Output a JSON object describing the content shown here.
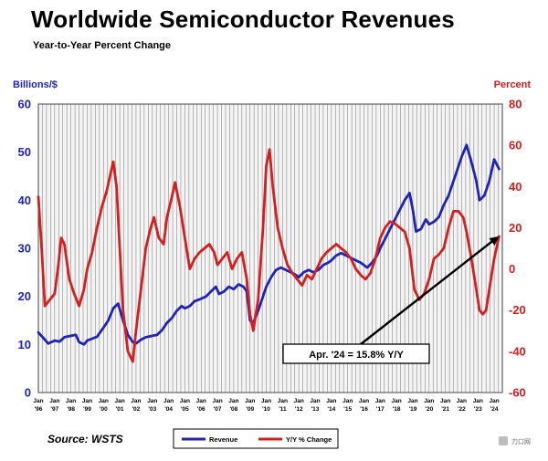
{
  "chart_data": {
    "type": "line",
    "title": "Worldwide Semiconductor Revenues",
    "subtitle": "Year-to-Year Percent Change",
    "ylabel_left": "Billions/$",
    "ylabel_right": "Percent",
    "ylim_left": [
      0,
      60
    ],
    "ylim_right": [
      -60,
      80
    ],
    "yticks_left": [
      "0",
      "10",
      "20",
      "30",
      "40",
      "50",
      "60"
    ],
    "yticks_right": [
      "-60",
      "-40",
      "-20",
      "0",
      "20",
      "40",
      "60",
      "80"
    ],
    "xlim": [
      1996.0,
      2024.5
    ],
    "grid": "vertical",
    "x_ticks": [
      {
        "year": 1996,
        "top": "Jan",
        "bottom": "'96"
      },
      {
        "year": 1997,
        "top": "Jan",
        "bottom": "'97"
      },
      {
        "year": 1998,
        "top": "Jan",
        "bottom": "'98"
      },
      {
        "year": 1999,
        "top": "Jan",
        "bottom": "'99"
      },
      {
        "year": 2000,
        "top": "Jan",
        "bottom": "'00"
      },
      {
        "year": 2001,
        "top": "Jan",
        "bottom": "'01"
      },
      {
        "year": 2002,
        "top": "Jan",
        "bottom": "'02"
      },
      {
        "year": 2003,
        "top": "Jan",
        "bottom": "'03"
      },
      {
        "year": 2004,
        "top": "Jan",
        "bottom": "'04"
      },
      {
        "year": 2005,
        "top": "Jan",
        "bottom": "'05"
      },
      {
        "year": 2006,
        "top": "Jan",
        "bottom": "'06"
      },
      {
        "year": 2007,
        "top": "Jan",
        "bottom": "'07"
      },
      {
        "year": 2008,
        "top": "Jan",
        "bottom": "'08"
      },
      {
        "year": 2009,
        "top": "Jan",
        "bottom": "'09"
      },
      {
        "year": 2010,
        "top": "Jan",
        "bottom": "'10"
      },
      {
        "year": 2011,
        "top": "Jan",
        "bottom": "'11"
      },
      {
        "year": 2012,
        "top": "Jan",
        "bottom": "'12"
      },
      {
        "year": 2013,
        "top": "Jan",
        "bottom": "'13"
      },
      {
        "year": 2014,
        "top": "Jan",
        "bottom": "'14"
      },
      {
        "year": 2015,
        "top": "Jan",
        "bottom": "'15"
      },
      {
        "year": 2016,
        "top": "Jan",
        "bottom": "'16"
      },
      {
        "year": 2017,
        "top": "Jan",
        "bottom": "'17"
      },
      {
        "year": 2018,
        "top": "Jan",
        "bottom": "'18"
      },
      {
        "year": 2019,
        "top": "Jan",
        "bottom": "'19"
      },
      {
        "year": 2020,
        "top": "Jan",
        "bottom": "'20"
      },
      {
        "year": 2021,
        "top": "Jan",
        "bottom": "'21"
      },
      {
        "year": 2022,
        "top": "Jan",
        "bottom": "'22"
      },
      {
        "year": 2023,
        "top": "Jan",
        "bottom": "'23"
      },
      {
        "year": 2024,
        "top": "Jan",
        "bottom": "'24"
      }
    ],
    "series": [
      {
        "name": "Revenue",
        "axis": "left",
        "color": "#1f23b8",
        "points": [
          [
            1996.0,
            12.5
          ],
          [
            1996.4,
            11.0
          ],
          [
            1996.6,
            10.2
          ],
          [
            1997.0,
            10.8
          ],
          [
            1997.3,
            10.6
          ],
          [
            1997.6,
            11.5
          ],
          [
            1998.0,
            11.8
          ],
          [
            1998.3,
            12.0
          ],
          [
            1998.5,
            10.5
          ],
          [
            1998.8,
            10.0
          ],
          [
            1999.0,
            10.8
          ],
          [
            1999.3,
            11.2
          ],
          [
            1999.6,
            11.6
          ],
          [
            2000.0,
            13.5
          ],
          [
            2000.3,
            15.0
          ],
          [
            2000.6,
            17.5
          ],
          [
            2000.9,
            18.5
          ],
          [
            2001.2,
            15.0
          ],
          [
            2001.5,
            12.0
          ],
          [
            2001.8,
            10.5
          ],
          [
            2002.0,
            10.2
          ],
          [
            2002.3,
            11.0
          ],
          [
            2002.6,
            11.5
          ],
          [
            2003.0,
            11.8
          ],
          [
            2003.3,
            12.0
          ],
          [
            2003.6,
            13.0
          ],
          [
            2003.9,
            14.5
          ],
          [
            2004.2,
            15.5
          ],
          [
            2004.5,
            17.0
          ],
          [
            2004.8,
            18.0
          ],
          [
            2005.0,
            17.5
          ],
          [
            2005.3,
            18.0
          ],
          [
            2005.6,
            19.0
          ],
          [
            2006.0,
            19.5
          ],
          [
            2006.3,
            20.0
          ],
          [
            2006.6,
            21.0
          ],
          [
            2006.9,
            22.0
          ],
          [
            2007.1,
            20.5
          ],
          [
            2007.4,
            21.0
          ],
          [
            2007.7,
            22.0
          ],
          [
            2008.0,
            21.5
          ],
          [
            2008.3,
            22.5
          ],
          [
            2008.6,
            22.0
          ],
          [
            2008.8,
            21.0
          ],
          [
            2009.0,
            15.0
          ],
          [
            2009.2,
            14.5
          ],
          [
            2009.5,
            17.0
          ],
          [
            2009.8,
            20.0
          ],
          [
            2010.0,
            22.0
          ],
          [
            2010.3,
            24.0
          ],
          [
            2010.6,
            25.5
          ],
          [
            2010.9,
            26.0
          ],
          [
            2011.2,
            25.5
          ],
          [
            2011.5,
            25.0
          ],
          [
            2011.8,
            24.5
          ],
          [
            2012.0,
            24.0
          ],
          [
            2012.3,
            25.0
          ],
          [
            2012.6,
            25.5
          ],
          [
            2012.9,
            25.0
          ],
          [
            2013.2,
            25.5
          ],
          [
            2013.5,
            26.5
          ],
          [
            2013.8,
            27.0
          ],
          [
            2014.0,
            27.5
          ],
          [
            2014.3,
            28.5
          ],
          [
            2014.6,
            29.0
          ],
          [
            2014.9,
            28.5
          ],
          [
            2015.2,
            28.0
          ],
          [
            2015.5,
            27.5
          ],
          [
            2015.8,
            27.0
          ],
          [
            2016.0,
            26.5
          ],
          [
            2016.2,
            26.0
          ],
          [
            2016.5,
            27.0
          ],
          [
            2016.8,
            28.5
          ],
          [
            2017.0,
            30.0
          ],
          [
            2017.3,
            32.0
          ],
          [
            2017.6,
            34.0
          ],
          [
            2017.9,
            36.0
          ],
          [
            2018.2,
            38.0
          ],
          [
            2018.5,
            40.0
          ],
          [
            2018.8,
            41.5
          ],
          [
            2019.0,
            38.0
          ],
          [
            2019.2,
            33.5
          ],
          [
            2019.5,
            34.0
          ],
          [
            2019.8,
            36.0
          ],
          [
            2020.0,
            35.0
          ],
          [
            2020.3,
            35.5
          ],
          [
            2020.6,
            36.5
          ],
          [
            2020.9,
            39.0
          ],
          [
            2021.2,
            41.0
          ],
          [
            2021.5,
            44.0
          ],
          [
            2021.8,
            47.0
          ],
          [
            2022.0,
            49.0
          ],
          [
            2022.3,
            51.5
          ],
          [
            2022.6,
            48.0
          ],
          [
            2022.9,
            44.0
          ],
          [
            2023.1,
            40.0
          ],
          [
            2023.4,
            41.0
          ],
          [
            2023.7,
            44.0
          ],
          [
            2024.0,
            48.5
          ],
          [
            2024.3,
            46.5
          ]
        ]
      },
      {
        "name": "Y/Y % Change",
        "axis": "right",
        "color": "#d61e1e",
        "points": [
          [
            1996.0,
            35
          ],
          [
            1996.2,
            10
          ],
          [
            1996.4,
            -18
          ],
          [
            1996.7,
            -15
          ],
          [
            1997.0,
            -12
          ],
          [
            1997.2,
            0
          ],
          [
            1997.4,
            15
          ],
          [
            1997.6,
            12
          ],
          [
            1997.9,
            -5
          ],
          [
            1998.2,
            -12
          ],
          [
            1998.5,
            -18
          ],
          [
            1998.8,
            -10
          ],
          [
            1999.0,
            0
          ],
          [
            1999.3,
            8
          ],
          [
            1999.6,
            20
          ],
          [
            1999.9,
            30
          ],
          [
            2000.2,
            38
          ],
          [
            2000.4,
            45
          ],
          [
            2000.6,
            52
          ],
          [
            2000.8,
            40
          ],
          [
            2001.0,
            10
          ],
          [
            2001.2,
            -20
          ],
          [
            2001.5,
            -40
          ],
          [
            2001.8,
            -45
          ],
          [
            2002.0,
            -30
          ],
          [
            2002.3,
            -10
          ],
          [
            2002.6,
            10
          ],
          [
            2002.9,
            20
          ],
          [
            2003.1,
            25
          ],
          [
            2003.4,
            15
          ],
          [
            2003.7,
            12
          ],
          [
            2003.9,
            25
          ],
          [
            2004.2,
            35
          ],
          [
            2004.4,
            42
          ],
          [
            2004.7,
            30
          ],
          [
            2004.9,
            20
          ],
          [
            2005.1,
            10
          ],
          [
            2005.3,
            0
          ],
          [
            2005.6,
            5
          ],
          [
            2005.9,
            8
          ],
          [
            2006.2,
            10
          ],
          [
            2006.5,
            12
          ],
          [
            2006.8,
            8
          ],
          [
            2007.0,
            2
          ],
          [
            2007.3,
            5
          ],
          [
            2007.6,
            8
          ],
          [
            2007.9,
            0
          ],
          [
            2008.2,
            5
          ],
          [
            2008.5,
            8
          ],
          [
            2008.8,
            -5
          ],
          [
            2009.0,
            -22
          ],
          [
            2009.2,
            -30
          ],
          [
            2009.5,
            -15
          ],
          [
            2009.8,
            20
          ],
          [
            2010.0,
            50
          ],
          [
            2010.2,
            58
          ],
          [
            2010.4,
            40
          ],
          [
            2010.7,
            20
          ],
          [
            2011.0,
            10
          ],
          [
            2011.3,
            2
          ],
          [
            2011.6,
            -2
          ],
          [
            2011.9,
            -5
          ],
          [
            2012.2,
            -8
          ],
          [
            2012.5,
            -3
          ],
          [
            2012.8,
            -5
          ],
          [
            2013.1,
            0
          ],
          [
            2013.4,
            5
          ],
          [
            2013.7,
            8
          ],
          [
            2014.0,
            10
          ],
          [
            2014.3,
            12
          ],
          [
            2014.6,
            10
          ],
          [
            2014.9,
            8
          ],
          [
            2015.2,
            5
          ],
          [
            2015.5,
            0
          ],
          [
            2015.8,
            -3
          ],
          [
            2016.1,
            -5
          ],
          [
            2016.4,
            -2
          ],
          [
            2016.7,
            5
          ],
          [
            2017.0,
            15
          ],
          [
            2017.3,
            20
          ],
          [
            2017.6,
            23
          ],
          [
            2017.9,
            22
          ],
          [
            2018.2,
            20
          ],
          [
            2018.5,
            18
          ],
          [
            2018.8,
            10
          ],
          [
            2019.1,
            -10
          ],
          [
            2019.4,
            -15
          ],
          [
            2019.7,
            -12
          ],
          [
            2020.0,
            -5
          ],
          [
            2020.3,
            5
          ],
          [
            2020.6,
            7
          ],
          [
            2020.9,
            10
          ],
          [
            2021.2,
            20
          ],
          [
            2021.5,
            28
          ],
          [
            2021.8,
            28
          ],
          [
            2022.1,
            25
          ],
          [
            2022.3,
            18
          ],
          [
            2022.6,
            5
          ],
          [
            2022.9,
            -10
          ],
          [
            2023.1,
            -20
          ],
          [
            2023.3,
            -22
          ],
          [
            2023.5,
            -20
          ],
          [
            2023.8,
            -5
          ],
          [
            2024.0,
            5
          ],
          [
            2024.3,
            15.8
          ]
        ]
      }
    ],
    "annotation": {
      "text": "Apr. '24 = 15.8% Y/Y",
      "x": 2024.3,
      "y": 15.8,
      "axis": "right"
    }
  },
  "source": "Source: WSTS",
  "legend": {
    "revenue": "Revenue",
    "yy": "Y/Y % Change"
  },
  "watermark": "力口网"
}
